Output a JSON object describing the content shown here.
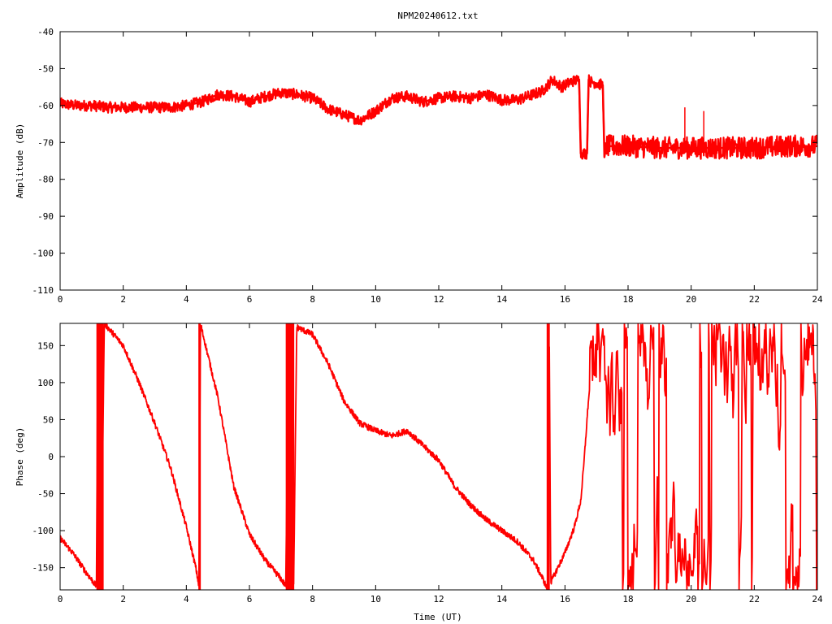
{
  "title": "NPM20240612.txt",
  "colors": {
    "trace": "#ff0000",
    "axis": "#000000",
    "background": "#ffffff"
  },
  "chart_data": [
    {
      "type": "line",
      "ylabel": "Amplitude (dB)",
      "xlabel": "",
      "xlim": [
        0,
        24
      ],
      "ylim": [
        -110,
        -40
      ],
      "xticks": [
        "0",
        "2",
        "4",
        "6",
        "8",
        "10",
        "12",
        "14",
        "16",
        "18",
        "20",
        "22",
        "24"
      ],
      "yticks": [
        "-40",
        "-50",
        "-60",
        "-70",
        "-80",
        "-90",
        "-100",
        "-110"
      ],
      "grid": false,
      "noise_band_db": 1.5,
      "x": [
        0,
        0.5,
        1,
        1.5,
        2,
        2.5,
        3,
        3.5,
        4,
        4.5,
        5,
        5.5,
        6,
        6.5,
        7,
        7.5,
        8,
        8.5,
        9,
        9.5,
        10,
        10.5,
        11,
        11.5,
        12,
        12.5,
        13,
        13.5,
        14,
        14.5,
        15,
        15.3,
        15.6,
        15.9,
        16.2,
        16.45,
        16.5,
        16.55,
        16.7,
        16.75,
        16.8,
        17.2,
        17.25,
        17.3,
        17.5,
        18,
        19,
        20,
        21,
        22,
        23,
        23.5,
        24
      ],
      "y": [
        -59.5,
        -60,
        -60,
        -60.5,
        -60.5,
        -60.5,
        -60.5,
        -60.5,
        -60,
        -59,
        -57,
        -57.5,
        -59,
        -57.5,
        -56.5,
        -57,
        -58,
        -61,
        -62.5,
        -64,
        -61.5,
        -58,
        -57.5,
        -59,
        -58,
        -57.5,
        -58,
        -57,
        -58.5,
        -58.5,
        -57,
        -56,
        -53,
        -55,
        -53.5,
        -53,
        -73,
        -73,
        -73,
        -53,
        -53.5,
        -54.5,
        -74,
        -71,
        -71,
        -71,
        -71.5,
        -71.5,
        -71.5,
        -71.5,
        -71,
        -71,
        -71
      ],
      "noisy_from_x": 17.25,
      "noisy_band_db": 3,
      "spikes": [
        {
          "x": 19.8,
          "y": -60.5
        },
        {
          "x": 20.4,
          "y": -61.5
        }
      ]
    },
    {
      "type": "line",
      "ylabel": "Phase (deg)",
      "xlabel": "Time (UT)",
      "xlim": [
        0,
        24
      ],
      "ylim": [
        -180,
        180
      ],
      "xticks": [
        "0",
        "2",
        "4",
        "6",
        "8",
        "10",
        "12",
        "14",
        "16",
        "18",
        "20",
        "22",
        "24"
      ],
      "yticks": [
        "150",
        "100",
        "50",
        "0",
        "-50",
        "-100",
        "-150"
      ],
      "grid": false,
      "x": [
        0,
        0.4,
        0.8,
        1.15,
        1.2,
        1.3,
        1.4,
        1.5,
        2,
        2.5,
        3,
        3.5,
        4,
        4.3,
        4.4,
        4.45,
        4.5,
        5,
        5.5,
        6,
        6.5,
        7,
        7.15,
        7.25,
        7.4,
        7.5,
        8,
        8.5,
        9,
        9.5,
        10,
        10.5,
        11,
        11.5,
        12,
        12.5,
        13,
        13.5,
        14,
        14.5,
        15,
        15.3,
        15.4,
        15.45,
        15.5,
        15.55,
        16,
        16.3,
        16.5,
        16.6,
        16.7,
        16.75
      ],
      "y": [
        -110,
        -130,
        -155,
        -175,
        180,
        -180,
        180,
        175,
        150,
        100,
        45,
        -15,
        -95,
        -150,
        -175,
        180,
        170,
        80,
        -40,
        -105,
        -140,
        -165,
        -175,
        180,
        -180,
        175,
        165,
        125,
        75,
        45,
        35,
        28,
        35,
        15,
        -5,
        -40,
        -65,
        -85,
        -100,
        -115,
        -140,
        -165,
        -175,
        -180,
        180,
        -170,
        -130,
        -95,
        -60,
        -10,
        50,
        80
      ],
      "chaotic_from_x": 16.75
    }
  ]
}
